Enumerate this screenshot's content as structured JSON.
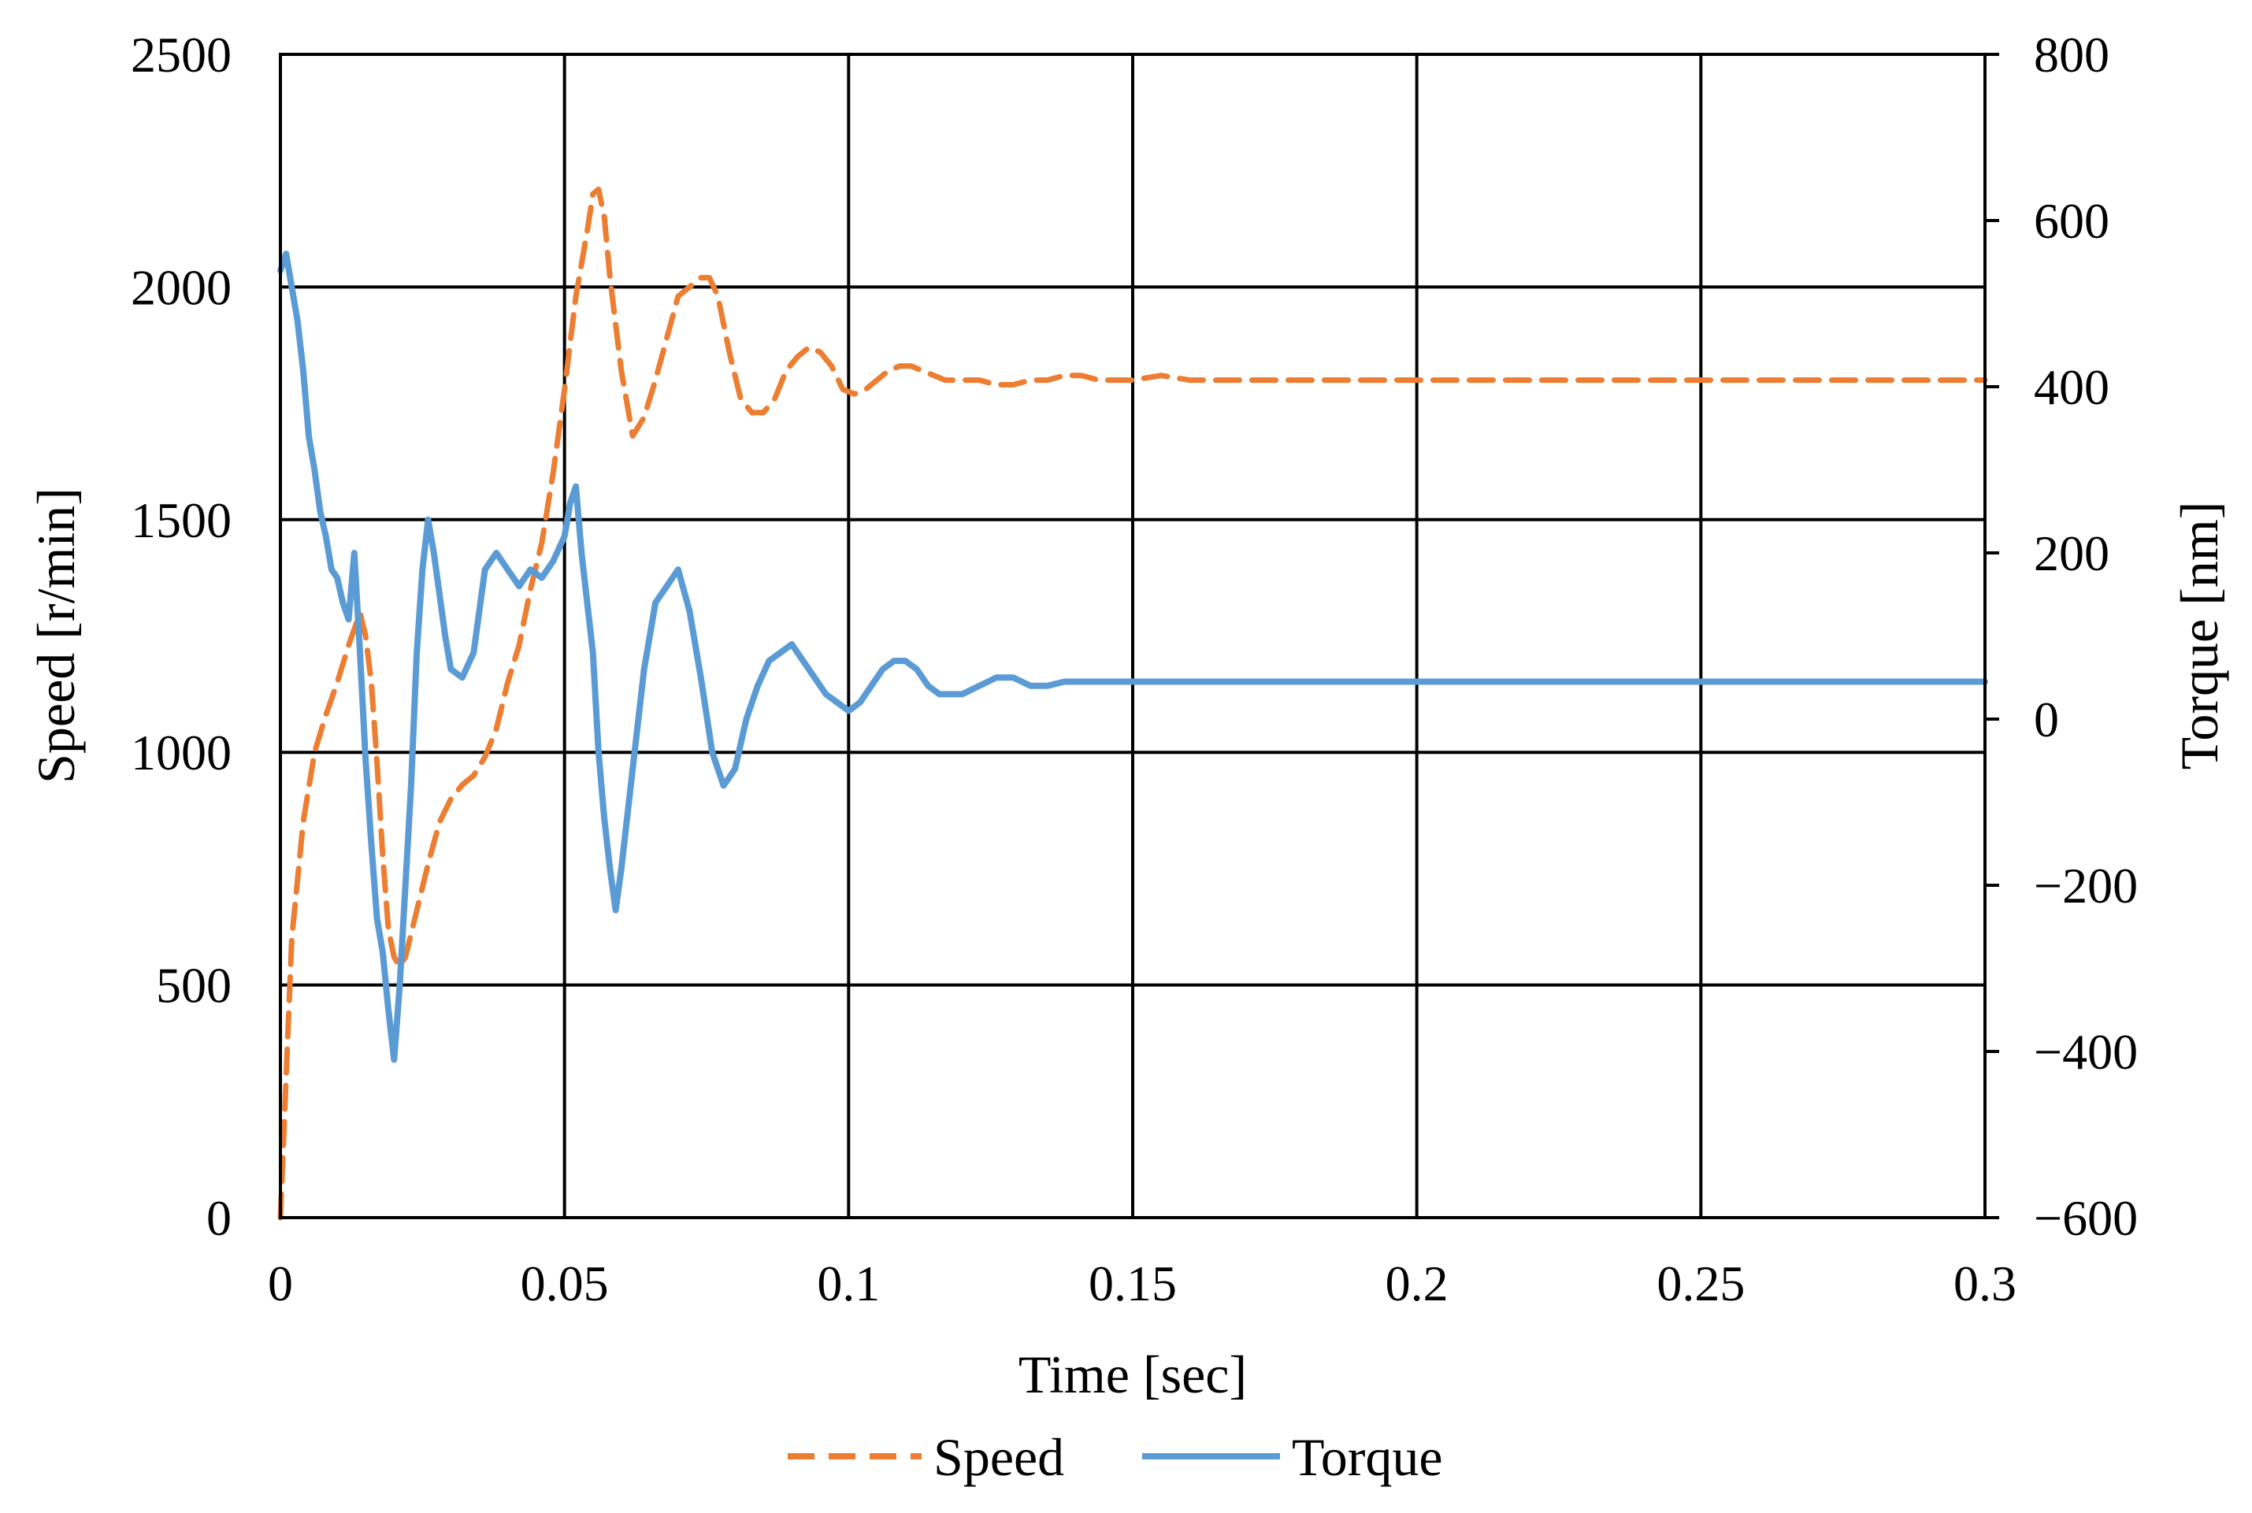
{
  "chart_data": {
    "type": "line",
    "xlabel": "Time [sec]",
    "ylabel_left": "Speed [r/min]",
    "ylabel_right": "Torque [nm]",
    "xlim": [
      0,
      0.3
    ],
    "ylim_left": [
      0,
      2500
    ],
    "ylim_right": [
      -600,
      800
    ],
    "x_ticks": [
      0,
      0.05,
      0.1,
      0.15,
      0.2,
      0.25,
      0.3
    ],
    "x_tick_labels": [
      "0",
      "0.05",
      "0.1",
      "0.15",
      "0.2",
      "0.25",
      "0.3"
    ],
    "y_left_ticks": [
      0,
      500,
      1000,
      1500,
      2000,
      2500
    ],
    "y_left_tick_labels": [
      "0",
      "500",
      "1000",
      "1500",
      "2000",
      "2500"
    ],
    "y_right_ticks": [
      -600,
      -400,
      -200,
      0,
      200,
      400,
      600,
      800
    ],
    "y_right_tick_labels": [
      "−600",
      "−400",
      "−200",
      "0",
      "200",
      "400",
      "600",
      "800"
    ],
    "grid": true,
    "legend_position": "bottom-center",
    "colors": {
      "speed": "#ED7D31",
      "torque": "#5B9BD5"
    },
    "series": [
      {
        "name": "Speed",
        "axis": "left",
        "style": "dashed",
        "x": [
          0,
          0.001,
          0.002,
          0.004,
          0.006,
          0.008,
          0.01,
          0.012,
          0.014,
          0.015,
          0.016,
          0.017,
          0.018,
          0.019,
          0.02,
          0.021,
          0.022,
          0.024,
          0.026,
          0.028,
          0.03,
          0.032,
          0.034,
          0.036,
          0.038,
          0.04,
          0.042,
          0.044,
          0.046,
          0.048,
          0.05,
          0.052,
          0.054,
          0.055,
          0.056,
          0.057,
          0.058,
          0.06,
          0.062,
          0.064,
          0.066,
          0.068,
          0.07,
          0.072,
          0.074,
          0.0755,
          0.077,
          0.079,
          0.081,
          0.083,
          0.085,
          0.087,
          0.089,
          0.091,
          0.093,
          0.095,
          0.097,
          0.099,
          0.101,
          0.103,
          0.105,
          0.107,
          0.109,
          0.111,
          0.113,
          0.115,
          0.117,
          0.12,
          0.123,
          0.126,
          0.129,
          0.132,
          0.135,
          0.138,
          0.141,
          0.144,
          0.147,
          0.15,
          0.155,
          0.16,
          0.17,
          0.18,
          0.2,
          0.22,
          0.25,
          0.28,
          0.3
        ],
        "values": [
          0,
          300,
          600,
          850,
          1000,
          1080,
          1150,
          1230,
          1300,
          1250,
          1150,
          980,
          780,
          620,
          560,
          540,
          560,
          660,
          760,
          850,
          900,
          930,
          950,
          990,
          1050,
          1150,
          1230,
          1350,
          1450,
          1600,
          1780,
          1980,
          2120,
          2200,
          2210,
          2150,
          2020,
          1820,
          1680,
          1720,
          1800,
          1890,
          1980,
          2000,
          2020,
          2020,
          1980,
          1860,
          1760,
          1730,
          1730,
          1760,
          1820,
          1850,
          1870,
          1860,
          1830,
          1780,
          1770,
          1780,
          1800,
          1820,
          1830,
          1830,
          1820,
          1810,
          1800,
          1800,
          1800,
          1790,
          1790,
          1800,
          1800,
          1810,
          1810,
          1800,
          1800,
          1800,
          1810,
          1800,
          1800,
          1800,
          1800,
          1800,
          1800,
          1800,
          1800
        ]
      },
      {
        "name": "Torque",
        "axis": "right",
        "style": "solid",
        "x": [
          0,
          0.001,
          0.002,
          0.003,
          0.004,
          0.005,
          0.006,
          0.007,
          0.008,
          0.009,
          0.01,
          0.011,
          0.012,
          0.013,
          0.014,
          0.015,
          0.016,
          0.017,
          0.018,
          0.019,
          0.02,
          0.021,
          0.022,
          0.023,
          0.024,
          0.025,
          0.026,
          0.027,
          0.028,
          0.029,
          0.03,
          0.032,
          0.034,
          0.036,
          0.038,
          0.04,
          0.042,
          0.044,
          0.046,
          0.048,
          0.05,
          0.051,
          0.052,
          0.053,
          0.054,
          0.055,
          0.056,
          0.057,
          0.058,
          0.059,
          0.06,
          0.062,
          0.064,
          0.066,
          0.068,
          0.07,
          0.072,
          0.074,
          0.076,
          0.078,
          0.079,
          0.08,
          0.082,
          0.084,
          0.086,
          0.088,
          0.09,
          0.092,
          0.094,
          0.096,
          0.098,
          0.1,
          0.102,
          0.104,
          0.106,
          0.108,
          0.11,
          0.112,
          0.114,
          0.116,
          0.118,
          0.12,
          0.123,
          0.126,
          0.129,
          0.132,
          0.135,
          0.138,
          0.141,
          0.144,
          0.147,
          0.15,
          0.16,
          0.2,
          0.25,
          0.3
        ],
        "values": [
          540,
          560,
          520,
          480,
          420,
          340,
          300,
          250,
          220,
          180,
          170,
          140,
          120,
          200,
          80,
          -50,
          -150,
          -240,
          -280,
          -350,
          -410,
          -320,
          -200,
          -80,
          80,
          180,
          240,
          200,
          150,
          100,
          60,
          50,
          80,
          180,
          200,
          180,
          160,
          180,
          170,
          190,
          220,
          260,
          280,
          200,
          140,
          80,
          -40,
          -120,
          -180,
          -230,
          -180,
          -60,
          60,
          140,
          160,
          180,
          130,
          50,
          -40,
          -80,
          -70,
          -60,
          0,
          40,
          70,
          80,
          90,
          70,
          50,
          30,
          20,
          10,
          20,
          40,
          60,
          70,
          70,
          60,
          40,
          30,
          30,
          30,
          40,
          50,
          50,
          40,
          40,
          45,
          45,
          45,
          45,
          45,
          45,
          45,
          45,
          45
        ]
      }
    ]
  }
}
